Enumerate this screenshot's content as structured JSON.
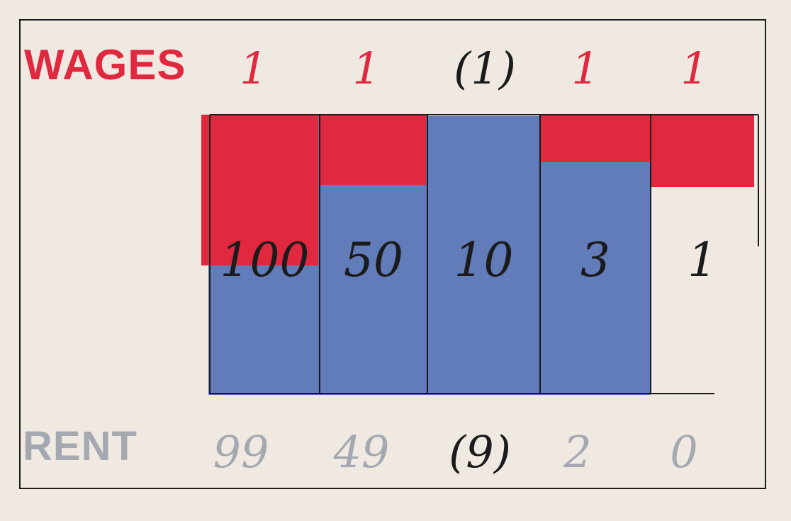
{
  "chart_data": {
    "type": "bar",
    "stacked": true,
    "title": "",
    "categories": [
      "100",
      "50",
      "10",
      "3",
      "1"
    ],
    "totals": [
      100,
      50,
      10,
      3,
      1
    ],
    "series": [
      {
        "name": "WAGES",
        "values": [
          1,
          1,
          1,
          1,
          1
        ],
        "color": "#e0283f"
      },
      {
        "name": "RENT",
        "values": [
          99,
          49,
          9,
          2,
          0
        ],
        "color": "#5a75b6"
      }
    ],
    "wages_labels": [
      "1",
      "1",
      "(1)",
      "1",
      "1"
    ],
    "rent_labels": [
      "99",
      "49",
      "(9)",
      "2",
      "0"
    ],
    "colors": {
      "wages": "#e0283f",
      "rent": "#5a75b6",
      "rent_label": "#a4a9b1",
      "ink": "#1b1b1b",
      "paper": "#efe9e1"
    }
  }
}
